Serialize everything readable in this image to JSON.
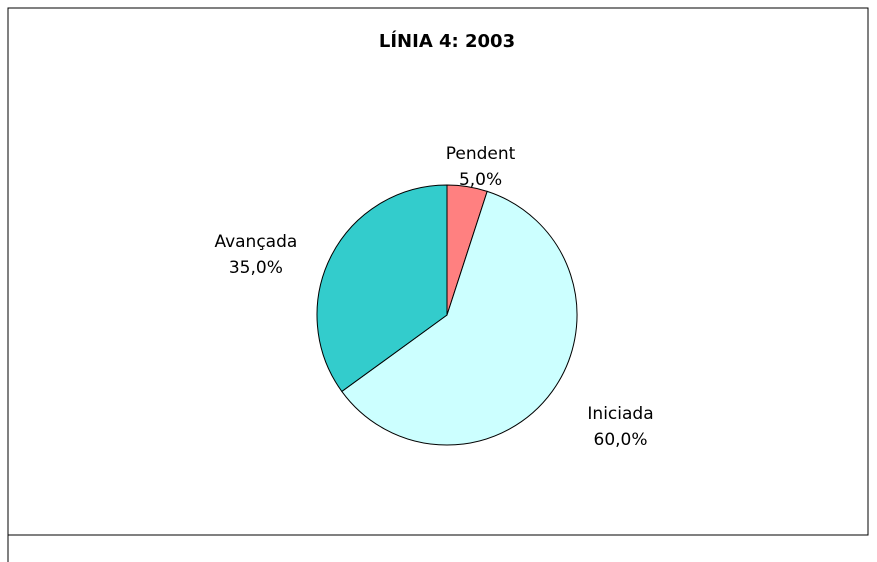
{
  "chart_data": {
    "type": "pie",
    "title": "LÍNIA 4: 2003",
    "categories": [
      "Pendent",
      "Iniciada",
      "Avançada"
    ],
    "values": [
      5,
      60,
      35
    ],
    "value_labels": [
      "5,0%",
      "60,0%",
      "35,0%"
    ],
    "colors": [
      "#ff8080",
      "#ccffff",
      "#33cccc"
    ]
  }
}
